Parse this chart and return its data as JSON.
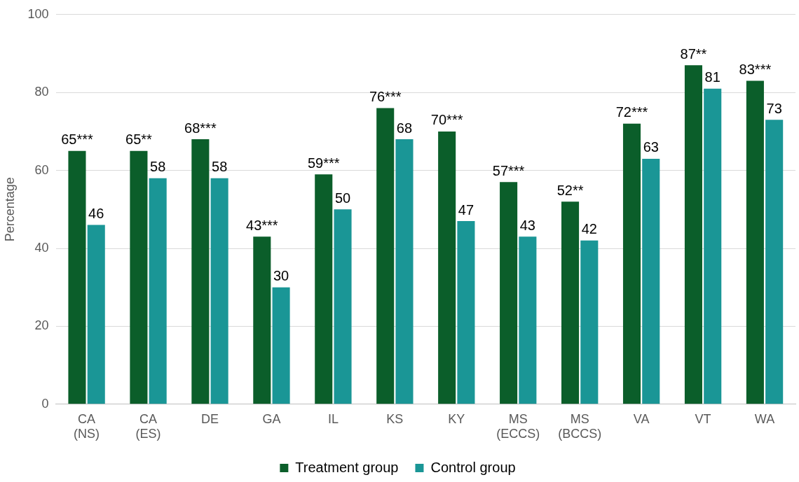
{
  "chart_data": {
    "type": "bar",
    "ylabel": "Percentage",
    "categories": [
      "CA (NS)",
      "CA (ES)",
      "DE",
      "GA",
      "IL",
      "KS",
      "KY",
      "MS (ECCS)",
      "MS (BCCS)",
      "VA",
      "VT",
      "WA"
    ],
    "series": [
      {
        "name": "Treatment group",
        "color": "#0b5e2a",
        "values": [
          65,
          65,
          68,
          43,
          59,
          76,
          70,
          57,
          52,
          72,
          87,
          83
        ],
        "value_labels": [
          "65***",
          "65**",
          "68***",
          "43***",
          "59***",
          "76***",
          "70***",
          "57***",
          "52**",
          "72***",
          "87**",
          "83***"
        ]
      },
      {
        "name": "Control group",
        "color": "#1a9696",
        "values": [
          46,
          58,
          58,
          30,
          50,
          68,
          47,
          43,
          42,
          63,
          81,
          73
        ],
        "value_labels": [
          "46",
          "58",
          "58",
          "30",
          "50",
          "68",
          "47",
          "43",
          "42",
          "63",
          "81",
          "73"
        ]
      }
    ],
    "ylim": [
      0,
      100
    ],
    "yticks": [
      0,
      20,
      40,
      60,
      80,
      100
    ],
    "grid": "y",
    "legend": "bottom"
  }
}
